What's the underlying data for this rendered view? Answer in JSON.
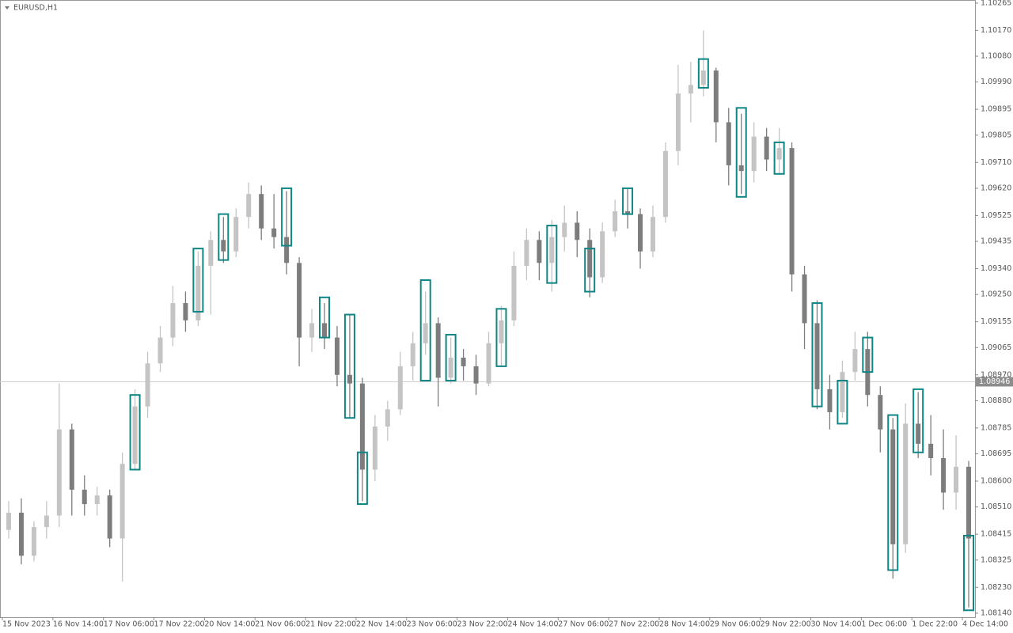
{
  "chart_data": {
    "type": "candlestick",
    "title": "EURUSD,H1",
    "categories": [
      "15 Nov 2023",
      null,
      null,
      null,
      "16 Nov 14:00",
      null,
      null,
      null,
      "17 Nov 06:00",
      null,
      null,
      null,
      "17 Nov 22:00",
      null,
      null,
      null,
      "20 Nov 14:00",
      null,
      null,
      null,
      "21 Nov 06:00",
      null,
      null,
      null,
      "21 Nov 22:00",
      null,
      null,
      null,
      "22 Nov 14:00",
      null,
      null,
      null,
      "23 Nov 06:00",
      null,
      null,
      null,
      "23 Nov 22:00",
      null,
      null,
      null,
      "24 Nov 14:00",
      null,
      null,
      null,
      "27 Nov 06:00",
      null,
      null,
      null,
      "27 Nov 22:00",
      null,
      null,
      null,
      "28 Nov 14:00",
      null,
      null,
      null,
      "29 Nov 06:00",
      null,
      null,
      null,
      "29 Nov 22:00",
      null,
      null,
      null,
      "30 Nov 14:00",
      null,
      null,
      null,
      "1 Dec 06:00",
      null,
      null,
      null,
      "1 Dec 22:00",
      null,
      null,
      null,
      "4 Dec 14:00"
    ],
    "open": [
      1.0843,
      1.0849,
      1.0834,
      1.0844,
      1.0848,
      1.0878,
      1.0857,
      1.0852,
      1.0855,
      1.084,
      1.0866,
      1.0886,
      1.0901,
      1.091,
      1.0922,
      1.0916,
      1.0935,
      1.0944,
      1.094,
      1.0952,
      1.096,
      1.0948,
      1.0945,
      1.0936,
      1.091,
      1.0915,
      1.091,
      1.0897,
      1.0894,
      1.0864,
      1.0879,
      1.0885,
      1.09,
      1.0908,
      1.0915,
      1.0896,
      1.0903,
      1.09,
      1.0894,
      1.0908,
      1.0916,
      1.0935,
      1.0944,
      1.0936,
      1.0945,
      1.095,
      1.0944,
      1.0931,
      1.0947,
      1.0954,
      1.0953,
      1.094,
      1.0952,
      1.0975,
      1.0995,
      1.0998,
      1.1003,
      1.0985,
      1.097,
      1.0968,
      1.098,
      1.0972,
      1.0976,
      1.0932,
      1.0915,
      1.0892,
      1.0884,
      1.0898,
      1.0906,
      1.089,
      1.0878,
      1.0838,
      1.088,
      1.0873,
      1.0868,
      1.0856,
      1.0865
    ],
    "high": [
      1.0853,
      1.0854,
      1.0846,
      1.0853,
      1.0894,
      1.088,
      1.0862,
      1.0858,
      1.0857,
      1.087,
      1.0892,
      1.0905,
      1.0914,
      1.0928,
      1.0926,
      1.094,
      1.0947,
      1.0952,
      1.0955,
      1.0964,
      1.0963,
      1.096,
      1.0961,
      1.0938,
      1.092,
      1.0922,
      1.0914,
      1.0918,
      1.0896,
      1.0883,
      1.0888,
      1.0905,
      1.0912,
      1.0926,
      1.0917,
      1.091,
      1.0906,
      1.0904,
      1.0912,
      1.0921,
      1.094,
      1.0948,
      1.0947,
      1.0951,
      1.0956,
      1.0954,
      1.0948,
      1.095,
      1.0958,
      1.0962,
      1.0955,
      1.0956,
      1.0978,
      1.1005,
      1.1006,
      1.1017,
      1.1004,
      1.099,
      1.0988,
      1.0985,
      1.0983,
      1.0983,
      1.0978,
      1.0935,
      1.0923,
      1.0897,
      1.0902,
      1.0912,
      1.0912,
      1.0893,
      1.0882,
      1.0887,
      1.0891,
      1.0883,
      1.0878,
      1.0876,
      1.0867
    ],
    "low": [
      1.084,
      1.0831,
      1.0832,
      1.084,
      1.0844,
      1.0848,
      1.0848,
      1.0848,
      1.0837,
      1.0825,
      1.0864,
      1.0882,
      1.0898,
      1.0907,
      1.0912,
      1.0914,
      1.0918,
      1.0936,
      1.0938,
      1.0948,
      1.0944,
      1.0941,
      1.0932,
      1.09,
      1.0905,
      1.0906,
      1.0893,
      1.0882,
      1.0853,
      1.086,
      1.0874,
      1.0883,
      1.0895,
      1.0904,
      1.0886,
      1.0894,
      1.0895,
      1.089,
      1.0893,
      1.09,
      1.0914,
      1.093,
      1.093,
      1.0926,
      1.094,
      1.0938,
      1.0924,
      1.0929,
      1.0945,
      1.0948,
      1.0934,
      1.0938,
      1.095,
      1.097,
      1.0985,
      1.0994,
      1.0978,
      1.0963,
      1.096,
      1.0964,
      1.0968,
      1.0967,
      1.0926,
      1.0906,
      1.0885,
      1.0878,
      1.0882,
      1.0895,
      1.0886,
      1.087,
      1.0826,
      1.0835,
      1.0868,
      1.0862,
      1.085,
      1.085,
      1.0816
    ],
    "close": [
      1.0849,
      1.0834,
      1.0844,
      1.0848,
      1.0878,
      1.0857,
      1.0852,
      1.0855,
      1.084,
      1.0866,
      1.0886,
      1.0901,
      1.091,
      1.0922,
      1.0916,
      1.0935,
      1.0944,
      1.094,
      1.0952,
      1.096,
      1.0948,
      1.0945,
      1.0936,
      1.091,
      1.0915,
      1.091,
      1.0897,
      1.0894,
      1.0864,
      1.0879,
      1.0885,
      1.09,
      1.0908,
      1.0915,
      1.0896,
      1.0903,
      1.09,
      1.0894,
      1.0908,
      1.0916,
      1.0935,
      1.0944,
      1.0936,
      1.0945,
      1.095,
      1.0944,
      1.0931,
      1.0947,
      1.0954,
      1.0953,
      1.094,
      1.0952,
      1.0975,
      1.0995,
      1.0998,
      1.1003,
      1.0985,
      1.097,
      1.0968,
      1.098,
      1.0972,
      1.0976,
      1.0932,
      1.0915,
      1.0892,
      1.0884,
      1.0898,
      1.0906,
      1.089,
      1.0878,
      1.0838,
      1.088,
      1.0873,
      1.0868,
      1.0856,
      1.0865,
      1.084
    ],
    "zone_high": [
      null,
      null,
      null,
      null,
      null,
      null,
      null,
      null,
      null,
      null,
      1.089,
      null,
      null,
      null,
      null,
      1.0941,
      null,
      1.0953,
      null,
      null,
      null,
      null,
      1.0962,
      null,
      null,
      1.0924,
      null,
      1.0918,
      1.087,
      null,
      null,
      null,
      null,
      1.093,
      null,
      1.0911,
      null,
      null,
      null,
      1.092,
      null,
      null,
      null,
      1.0949,
      null,
      null,
      1.0941,
      null,
      null,
      1.0962,
      null,
      null,
      null,
      null,
      null,
      1.1007,
      null,
      null,
      1.099,
      null,
      null,
      1.0978,
      null,
      null,
      1.0922,
      null,
      1.0895,
      null,
      1.091,
      null,
      1.0883,
      null,
      1.0892,
      null,
      null,
      null,
      1.0841
    ],
    "zone_low": [
      null,
      null,
      null,
      null,
      null,
      null,
      null,
      null,
      null,
      null,
      1.0864,
      null,
      null,
      null,
      null,
      1.0919,
      null,
      1.0937,
      null,
      null,
      null,
      null,
      1.0942,
      null,
      null,
      1.091,
      null,
      1.0882,
      1.0852,
      null,
      null,
      null,
      null,
      1.0895,
      null,
      1.0895,
      null,
      null,
      null,
      1.09,
      null,
      null,
      null,
      1.0929,
      null,
      null,
      1.0926,
      null,
      null,
      1.0953,
      null,
      null,
      null,
      null,
      null,
      1.0997,
      null,
      null,
      1.0959,
      null,
      null,
      1.0967,
      null,
      null,
      1.0886,
      null,
      1.088,
      null,
      1.0898,
      null,
      1.0829,
      null,
      1.087,
      null,
      null,
      null,
      1.0815
    ],
    "up_color": "#c4c4c4",
    "down_color": "#7d7d7d",
    "zone_color": "#0f8584",
    "current_price": 1.08946,
    "ylim": [
      1.08126,
      1.10273
    ],
    "yticks": [
      1.10265,
      {
        "value": 1.1017,
        "label": "1.10170"
      },
      {
        "value": 1.1008,
        "label": "1.10080"
      },
      {
        "value": 1.0999,
        "label": "1.09990"
      },
      1.09895,
      1.09805,
      {
        "value": 1.0971,
        "label": "1.09710"
      },
      {
        "value": 1.0962,
        "label": "1.09620"
      },
      1.09525,
      1.09435,
      {
        "value": 1.0934,
        "label": "1.09340"
      },
      {
        "value": 1.0925,
        "label": "1.09250"
      },
      1.09155,
      1.09065,
      {
        "value": 1.0897,
        "label": "1.08970"
      },
      {
        "value": 1.0888,
        "label": "1.08880"
      },
      1.08785,
      1.08695,
      {
        "value": 1.086,
        "label": "1.08600"
      },
      {
        "value": 1.0851,
        "label": "1.08510"
      },
      1.08415,
      1.08325,
      {
        "value": 1.0823,
        "label": "1.08230"
      },
      {
        "value": 1.0814,
        "label": "1.08140"
      }
    ]
  }
}
